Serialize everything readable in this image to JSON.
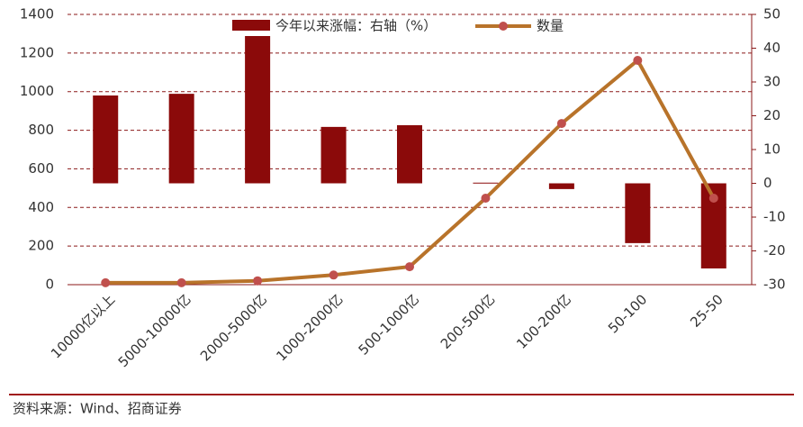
{
  "chart_data": {
    "type": "bar-line",
    "categories": [
      "10000亿以上",
      "5000-10000亿",
      "2000-5000亿",
      "1000-2000亿",
      "500-1000亿",
      "200-500亿",
      "100-200亿",
      "50-100",
      "25-50"
    ],
    "series": [
      {
        "name": "今年以来涨幅：右轴（%）",
        "type": "bar",
        "axis": "y2",
        "color": "#8b0a0a",
        "values": [
          26,
          26.5,
          43.6,
          16.7,
          17.2,
          0.2,
          -1.7,
          -17.7,
          -25.2
        ]
      },
      {
        "name": "数量",
        "type": "line",
        "axis": "y",
        "color": "#b8732a",
        "marker_color": "#c0504d",
        "values": [
          10,
          10,
          20,
          50,
          93,
          448,
          835,
          1162,
          448
        ]
      }
    ],
    "ylim": [
      0,
      1400
    ],
    "yticks": [
      0,
      200,
      400,
      600,
      800,
      1000,
      1200,
      1400
    ],
    "y2lim": [
      -30,
      50
    ],
    "y2ticks": [
      -30,
      -20,
      -10,
      0,
      10,
      20,
      30,
      40,
      50
    ],
    "grid": true,
    "source": "资料来源：Wind、招商证券"
  }
}
